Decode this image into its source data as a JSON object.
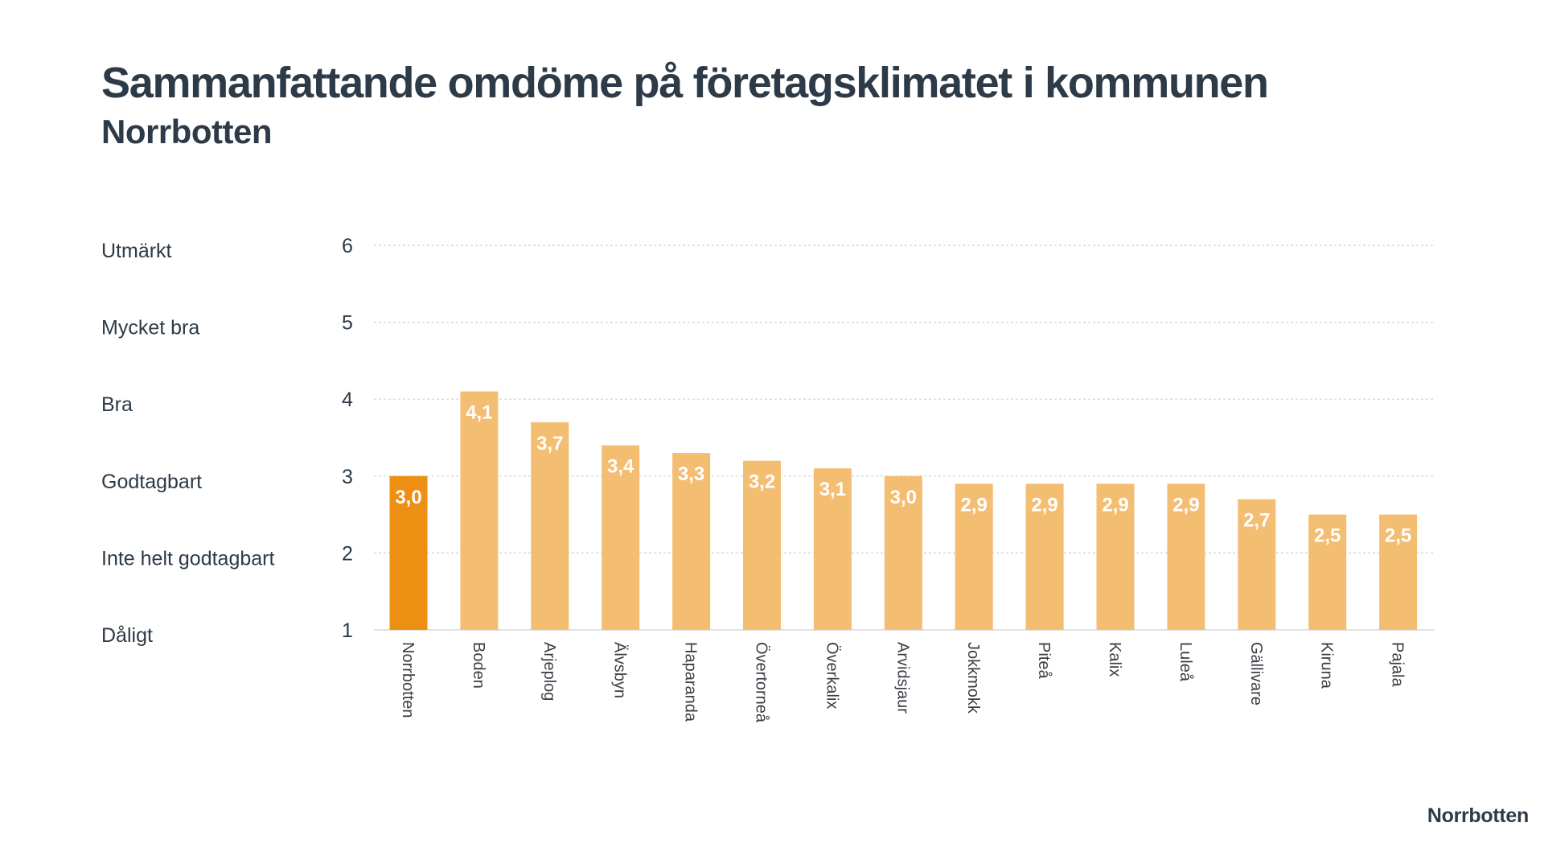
{
  "title": "Sammanfattande omdöme på företagsklimatet i kommunen",
  "subtitle": "Norrbotten",
  "footer": "Norrbotten",
  "colors": {
    "highlight": "#ec8f13",
    "bar": "#f3bd72",
    "text": "#2d3a47",
    "grid": "#cfcfcf"
  },
  "chart_data": {
    "type": "bar",
    "title": "Sammanfattande omdöme på företagsklimatet i kommunen",
    "subtitle": "Norrbotten",
    "categories": [
      "Norrbotten",
      "Boden",
      "Arjeplog",
      "Älvsbyn",
      "Haparanda",
      "Övertorneå",
      "Överkalix",
      "Arvidsjaur",
      "Jokkmokk",
      "Piteå",
      "Kalix",
      "Luleå",
      "Gällivare",
      "Kiruna",
      "Pajala"
    ],
    "values": [
      3.0,
      4.1,
      3.7,
      3.4,
      3.3,
      3.2,
      3.1,
      3.0,
      2.9,
      2.9,
      2.9,
      2.9,
      2.7,
      2.5,
      2.5
    ],
    "data_labels": [
      "3,0",
      "4,1",
      "3,7",
      "3,4",
      "3,3",
      "3,2",
      "3,1",
      "3,0",
      "2,9",
      "2,9",
      "2,9",
      "2,9",
      "2,7",
      "2,5",
      "2,5"
    ],
    "highlight_category": "Norrbotten",
    "ylim": [
      1,
      6
    ],
    "y_ticks": [
      {
        "value": 6,
        "label": "6",
        "rating": "Utmärkt"
      },
      {
        "value": 5,
        "label": "5",
        "rating": "Mycket bra"
      },
      {
        "value": 4,
        "label": "4",
        "rating": "Bra"
      },
      {
        "value": 3,
        "label": "3",
        "rating": "Godtagbart"
      },
      {
        "value": 2,
        "label": "2",
        "rating": "Inte helt godtagbart"
      },
      {
        "value": 1,
        "label": "1",
        "rating": "Dåligt"
      }
    ],
    "grid": true,
    "legend": "none",
    "xlabel": "",
    "ylabel": ""
  }
}
